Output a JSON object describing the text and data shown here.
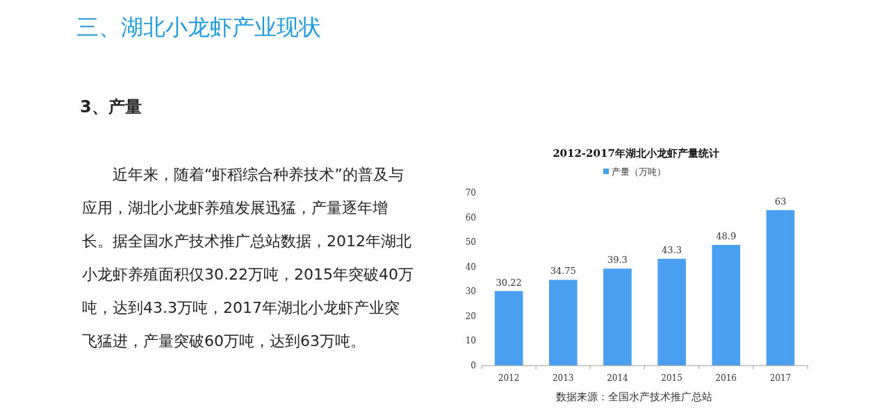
{
  "chart_data": {
    "type": "bar",
    "title": "2012-2017年湖北小龙虾产量统计",
    "categories": [
      "2012",
      "2013",
      "2014",
      "2015",
      "2016",
      "2017"
    ],
    "series": [
      {
        "name": "产量（万吨）",
        "color": "#4a9ff0",
        "values": [
          30.22,
          34.75,
          39.3,
          43.3,
          48.9,
          63
        ]
      }
    ],
    "data_labels": true,
    "ylim": [
      0,
      70
    ],
    "yticks": [
      0,
      10,
      20,
      30,
      40,
      50,
      60,
      70
    ],
    "legend": "top",
    "grid": false,
    "annotations": [
      "三、湖北小龙虾产业现状",
      "3、产量",
      "近年来，随着“虾稻综合种养技术”的普及与应用，湖北小龙虾养殖发展迅猛，产量逐年增长。据全国水产技术推广总站数据，2012年湖北小龙虾养殖面积仅30.22万吨，2015年突破40万吨，达到43.3万吨，2017年湖北小龙虾产业突飞猛进，产量突破60万吨，达到63万吨。",
      "数据来源：全国水产技术推广总站"
    ]
  }
}
